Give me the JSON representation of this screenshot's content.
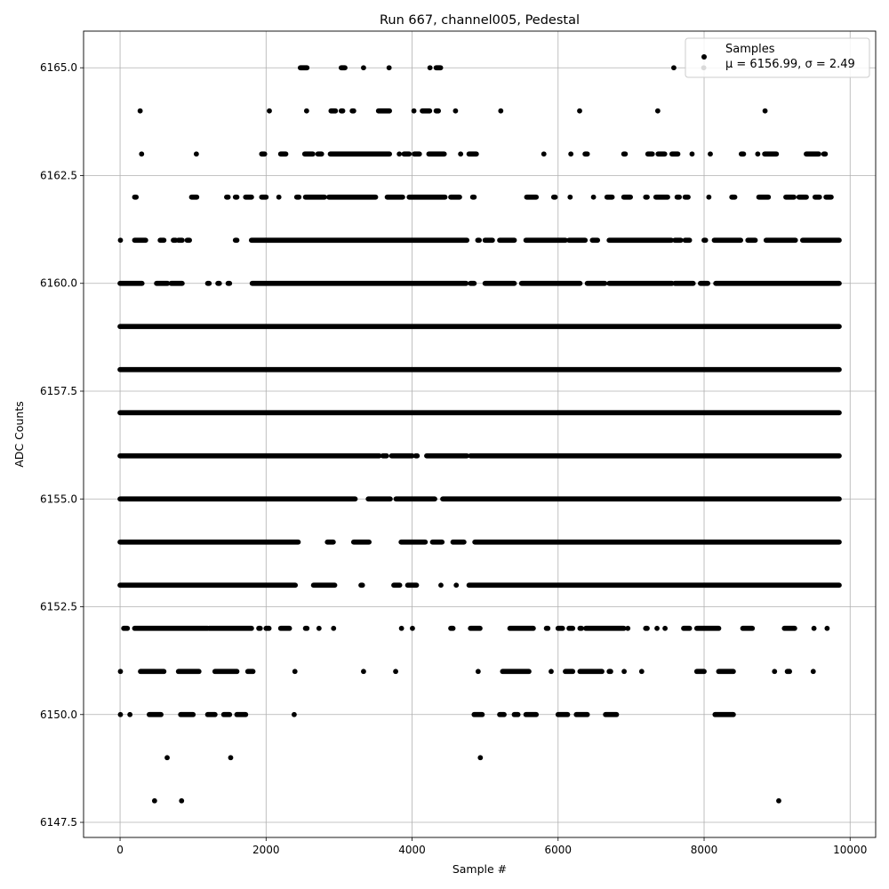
{
  "chart_data": {
    "type": "scatter",
    "title": "Run 667, channel005, Pedestal",
    "xlabel": "Sample #",
    "ylabel": "ADC Counts",
    "xlim": [
      -500,
      10350
    ],
    "ylim": [
      6147.15,
      6165.85
    ],
    "xticks": [
      0,
      2000,
      4000,
      6000,
      8000,
      10000
    ],
    "yticks": [
      6147.5,
      6150.0,
      6152.5,
      6155.0,
      6157.5,
      6160.0,
      6162.5,
      6165.0
    ],
    "xtick_labels": [
      "0",
      "2000",
      "4000",
      "6000",
      "8000",
      "10000"
    ],
    "ytick_labels": [
      "6147.5",
      "6150.0",
      "6152.5",
      "6155.0",
      "6157.5",
      "6160.0",
      "6162.5",
      "6165.0"
    ],
    "grid": true,
    "legend_position": "top-right",
    "marker_color": "#000000",
    "series": [
      {
        "name": "Samples",
        "legend_stats": "μ = 6156.99, σ = 2.49",
        "level_ranges": [
          {
            "y": 6148,
            "ranges": [
              [
                470,
                475
              ],
              [
                840,
                845
              ],
              [
                9020,
                9025
              ]
            ]
          },
          {
            "y": 6149,
            "ranges": [
              [
                640,
                650
              ],
              [
                1510,
                1520
              ],
              [
                4930,
                4940
              ]
            ]
          },
          {
            "y": 6150,
            "ranges": [
              [
                0,
                10
              ],
              [
                130,
                140
              ],
              [
                400,
                560
              ],
              [
                830,
                1000
              ],
              [
                1200,
                1300
              ],
              [
                1420,
                1500
              ],
              [
                1600,
                1720
              ],
              [
                2380,
                2390
              ],
              [
                4850,
                4960
              ],
              [
                5200,
                5260
              ],
              [
                5400,
                5450
              ],
              [
                5560,
                5700
              ],
              [
                6000,
                6130
              ],
              [
                6250,
                6400
              ],
              [
                6650,
                6800
              ],
              [
                8150,
                8400
              ]
            ]
          },
          {
            "y": 6151,
            "ranges": [
              [
                0,
                10
              ],
              [
                280,
                600
              ],
              [
                800,
                1080
              ],
              [
                1300,
                1600
              ],
              [
                1750,
                1820
              ],
              [
                2390,
                2400
              ],
              [
                3330,
                3340
              ],
              [
                3770,
                3780
              ],
              [
                4900,
                4910
              ],
              [
                5240,
                5600
              ],
              [
                5900,
                5910
              ],
              [
                6100,
                6200
              ],
              [
                6300,
                6600
              ],
              [
                6700,
                6720
              ],
              [
                6900,
                6910
              ],
              [
                7140,
                7150
              ],
              [
                7900,
                8000
              ],
              [
                8200,
                8400
              ],
              [
                8960,
                8970
              ],
              [
                9140,
                9170
              ],
              [
                9490,
                9500
              ]
            ]
          },
          {
            "y": 6152,
            "ranges": [
              [
                50,
                100
              ],
              [
                200,
                1200
              ],
              [
                1220,
                1800
              ],
              [
                1900,
                1920
              ],
              [
                2000,
                2040
              ],
              [
                2200,
                2320
              ],
              [
                2540,
                2560
              ],
              [
                2720,
                2730
              ],
              [
                2920,
                2930
              ],
              [
                3850,
                3860
              ],
              [
                4000,
                4010
              ],
              [
                4530,
                4560
              ],
              [
                4800,
                4930
              ],
              [
                5340,
                5660
              ],
              [
                5840,
                5860
              ],
              [
                6000,
                6060
              ],
              [
                6150,
                6200
              ],
              [
                6300,
                6320
              ],
              [
                6380,
                6900
              ],
              [
                6950,
                6960
              ],
              [
                7200,
                7220
              ],
              [
                7350,
                7360
              ],
              [
                7460,
                7470
              ],
              [
                7720,
                7800
              ],
              [
                7900,
                8200
              ],
              [
                8530,
                8660
              ],
              [
                9100,
                9240
              ],
              [
                9500,
                9510
              ],
              [
                9680,
                9690
              ]
            ]
          },
          {
            "y": 6153,
            "ranges": [
              [
                0,
                2400
              ],
              [
                2650,
                2940
              ],
              [
                3300,
                3320
              ],
              [
                3750,
                3830
              ],
              [
                3940,
                4060
              ],
              [
                4390,
                4400
              ],
              [
                4600,
                4610
              ],
              [
                4780,
                9850
              ]
            ]
          },
          {
            "y": 6154,
            "ranges": [
              [
                0,
                2440
              ],
              [
                2840,
                2920
              ],
              [
                3200,
                3410
              ],
              [
                3850,
                4180
              ],
              [
                4280,
                4410
              ],
              [
                4560,
                4710
              ],
              [
                4860,
                9850
              ]
            ]
          },
          {
            "y": 6155,
            "ranges": [
              [
                0,
                3220
              ],
              [
                3400,
                3700
              ],
              [
                3780,
                4310
              ],
              [
                4420,
                9850
              ]
            ]
          },
          {
            "y": 6156,
            "ranges": [
              [
                0,
                3550
              ],
              [
                3600,
                3650
              ],
              [
                3720,
                4000
              ],
              [
                4050,
                4070
              ],
              [
                4200,
                4750
              ],
              [
                4800,
                9850
              ]
            ]
          },
          {
            "y": 6157,
            "ranges": [
              [
                0,
                9850
              ]
            ]
          },
          {
            "y": 6158,
            "ranges": [
              [
                0,
                9850
              ]
            ]
          },
          {
            "y": 6159,
            "ranges": [
              [
                0,
                9850
              ]
            ]
          },
          {
            "y": 6160,
            "ranges": [
              [
                0,
                300
              ],
              [
                500,
                650
              ],
              [
                700,
                850
              ],
              [
                1200,
                1220
              ],
              [
                1340,
                1360
              ],
              [
                1480,
                1500
              ],
              [
                1810,
                4740
              ],
              [
                4800,
                4850
              ],
              [
                5000,
                5400
              ],
              [
                5500,
                6300
              ],
              [
                6400,
                6640
              ],
              [
                6700,
                7560
              ],
              [
                7600,
                7850
              ],
              [
                7950,
                8050
              ],
              [
                8160,
                9850
              ]
            ]
          },
          {
            "y": 6161,
            "ranges": [
              [
                0,
                10
              ],
              [
                200,
                350
              ],
              [
                550,
                600
              ],
              [
                730,
                760
              ],
              [
                800,
                850
              ],
              [
                920,
                950
              ],
              [
                1580,
                1600
              ],
              [
                1800,
                4750
              ],
              [
                4900,
                4920
              ],
              [
                5000,
                5100
              ],
              [
                5200,
                5400
              ],
              [
                5560,
                6100
              ],
              [
                6150,
                6370
              ],
              [
                6470,
                6540
              ],
              [
                6700,
                7550
              ],
              [
                7600,
                7680
              ],
              [
                7740,
                7800
              ],
              [
                8000,
                8020
              ],
              [
                8140,
                8500
              ],
              [
                8600,
                8700
              ],
              [
                8850,
                9250
              ],
              [
                9350,
                9850
              ]
            ]
          },
          {
            "y": 6162,
            "ranges": [
              [
                200,
                220
              ],
              [
                980,
                1050
              ],
              [
                1460,
                1480
              ],
              [
                1580,
                1600
              ],
              [
                1720,
                1800
              ],
              [
                1940,
                2000
              ],
              [
                2170,
                2180
              ],
              [
                2420,
                2450
              ],
              [
                2540,
                2800
              ],
              [
                2860,
                3500
              ],
              [
                3660,
                3870
              ],
              [
                3960,
                4450
              ],
              [
                4530,
                4650
              ],
              [
                4830,
                4850
              ],
              [
                5570,
                5700
              ],
              [
                5940,
                5960
              ],
              [
                6160,
                6170
              ],
              [
                6480,
                6490
              ],
              [
                6670,
                6740
              ],
              [
                6900,
                6990
              ],
              [
                7200,
                7220
              ],
              [
                7340,
                7500
              ],
              [
                7630,
                7660
              ],
              [
                7740,
                7780
              ],
              [
                8060,
                8070
              ],
              [
                8380,
                8420
              ],
              [
                8750,
                8880
              ],
              [
                9120,
                9230
              ],
              [
                9300,
                9400
              ],
              [
                9520,
                9580
              ],
              [
                9670,
                9740
              ]
            ]
          },
          {
            "y": 6163,
            "ranges": [
              [
                290,
                300
              ],
              [
                1040,
                1050
              ],
              [
                1940,
                1980
              ],
              [
                2200,
                2270
              ],
              [
                2530,
                2640
              ],
              [
                2710,
                2760
              ],
              [
                2880,
                3690
              ],
              [
                3820,
                3830
              ],
              [
                3890,
                3960
              ],
              [
                4030,
                4100
              ],
              [
                4230,
                4440
              ],
              [
                4660,
                4670
              ],
              [
                4780,
                4880
              ],
              [
                5800,
                5810
              ],
              [
                6170,
                6180
              ],
              [
                6370,
                6400
              ],
              [
                6900,
                6920
              ],
              [
                7230,
                7290
              ],
              [
                7370,
                7460
              ],
              [
                7560,
                7640
              ],
              [
                7830,
                7840
              ],
              [
                8080,
                8090
              ],
              [
                8510,
                8540
              ],
              [
                8730,
                8740
              ],
              [
                8830,
                8990
              ],
              [
                9400,
                9570
              ],
              [
                9640,
                9660
              ]
            ]
          },
          {
            "y": 6164,
            "ranges": [
              [
                270,
                280
              ],
              [
                2040,
                2050
              ],
              [
                2550,
                2560
              ],
              [
                2890,
                2950
              ],
              [
                3030,
                3050
              ],
              [
                3180,
                3200
              ],
              [
                3540,
                3690
              ],
              [
                4020,
                4030
              ],
              [
                4140,
                4240
              ],
              [
                4330,
                4360
              ],
              [
                4590,
                4600
              ],
              [
                5210,
                5220
              ],
              [
                6290,
                6300
              ],
              [
                7360,
                7370
              ],
              [
                8830,
                8840
              ]
            ]
          },
          {
            "y": 6165,
            "ranges": [
              [
                2470,
                2560
              ],
              [
                3030,
                3080
              ],
              [
                3330,
                3340
              ],
              [
                3680,
                3690
              ],
              [
                4240,
                4250
              ],
              [
                4330,
                4390
              ],
              [
                7580,
                7590
              ],
              [
                7990,
                8000
              ]
            ]
          }
        ]
      }
    ]
  }
}
